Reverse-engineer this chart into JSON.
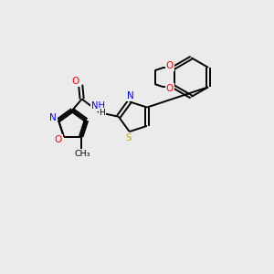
{
  "background_color": "#ebebeb",
  "bond_color": "#000000",
  "atom_colors": {
    "N": "#0000ff",
    "O": "#ff0000",
    "S": "#ccaa00",
    "C": "#000000",
    "H": "#000000"
  },
  "figsize": [
    3.0,
    3.0
  ],
  "dpi": 100
}
